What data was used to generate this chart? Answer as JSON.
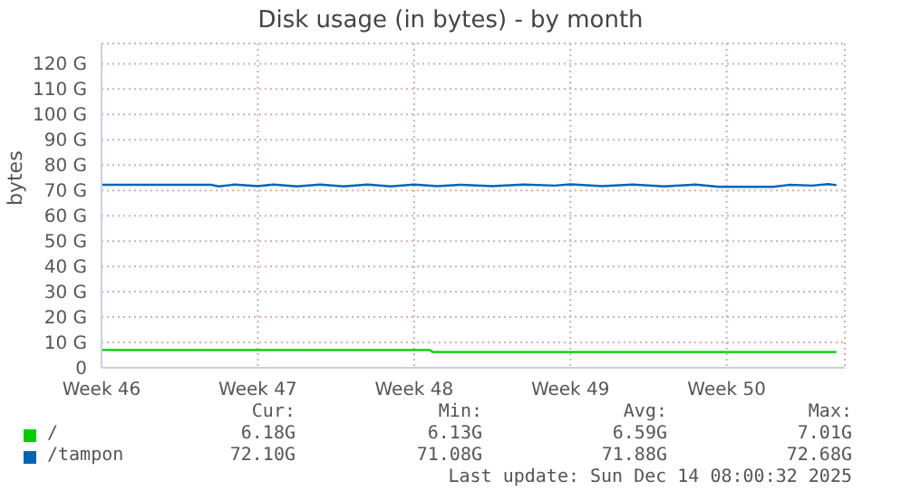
{
  "chart_data": {
    "type": "line",
    "title": "Disk usage (in bytes) - by month",
    "ylabel": "bytes",
    "xlim": [
      "2025-11-10",
      "2025-12-13T07:00"
    ],
    "xticks": [
      {
        "value": "2025-11-10",
        "label": "Week 46"
      },
      {
        "value": "2025-11-17",
        "label": "Week 47"
      },
      {
        "value": "2025-11-24",
        "label": "Week 48"
      },
      {
        "value": "2025-12-01",
        "label": "Week 49"
      },
      {
        "value": "2025-12-08",
        "label": "Week 50"
      }
    ],
    "ylim": [
      0,
      128
    ],
    "yticks": [
      {
        "value": 0,
        "label": "0"
      },
      {
        "value": 10,
        "label": "10 G"
      },
      {
        "value": 20,
        "label": "20 G"
      },
      {
        "value": 30,
        "label": "30 G"
      },
      {
        "value": 40,
        "label": "40 G"
      },
      {
        "value": 50,
        "label": "50 G"
      },
      {
        "value": 60,
        "label": "60 G"
      },
      {
        "value": 70,
        "label": "70 G"
      },
      {
        "value": 80,
        "label": "80 G"
      },
      {
        "value": 90,
        "label": "90 G"
      },
      {
        "value": 100,
        "label": "100 G"
      },
      {
        "value": 110,
        "label": "110 G"
      },
      {
        "value": 120,
        "label": "120 G"
      }
    ],
    "grid": true,
    "legend": "bottom",
    "marker": "none",
    "line_style": "solid",
    "series": [
      {
        "name": "/",
        "color": "#00cc00",
        "x": [
          "2025-11-10",
          "2025-11-17",
          "2025-11-24",
          "2025-11-24T17:00",
          "2025-11-24T20:00",
          "2025-12-01",
          "2025-12-08",
          "2025-12-12T22:00"
        ],
        "values": [
          7.0,
          7.0,
          7.0,
          7.0,
          6.2,
          6.2,
          6.2,
          6.2
        ]
      },
      {
        "name": "/tampon",
        "color": "#0066b3",
        "x": [
          "2025-11-10",
          "2025-11-14T22:00",
          "2025-11-15T06:00",
          "2025-11-15T23:00",
          "2025-11-17",
          "2025-11-17T17:00",
          "2025-11-18T18:00",
          "2025-11-19T19:00",
          "2025-11-20T20:00",
          "2025-11-21T22:00",
          "2025-11-22T23:00",
          "2025-11-24",
          "2025-11-25T01:00",
          "2025-11-26T02:00",
          "2025-11-27T12:00",
          "2025-11-28T22:00",
          "2025-11-30T07:00",
          "2025-12-01",
          "2025-12-02T10:00",
          "2025-12-03T19:00",
          "2025-12-05T05:00",
          "2025-12-06T14:00",
          "2025-12-07T16:00",
          "2025-12-08T17:00",
          "2025-12-10T02:00",
          "2025-12-10T19:00",
          "2025-12-11T20:00",
          "2025-12-12T13:00",
          "2025-12-12T22:00"
        ],
        "values": [
          72.2,
          72.2,
          71.6,
          72.3,
          71.7,
          72.3,
          71.6,
          72.3,
          71.6,
          72.3,
          71.6,
          72.3,
          71.7,
          72.2,
          71.7,
          72.3,
          71.9,
          72.4,
          71.7,
          72.3,
          71.6,
          72.3,
          71.4,
          71.4,
          71.4,
          72.2,
          71.9,
          72.5,
          72.1
        ]
      }
    ],
    "annotations": [
      "Cur:",
      "Min:",
      "Avg:",
      "Max:",
      "6.18G",
      "6.13G",
      "6.59G",
      "7.01G",
      "72.10G",
      "71.08G",
      "71.88G",
      "72.68G",
      "Last update: Sun Dec 14 08:00:32 2025"
    ]
  }
}
